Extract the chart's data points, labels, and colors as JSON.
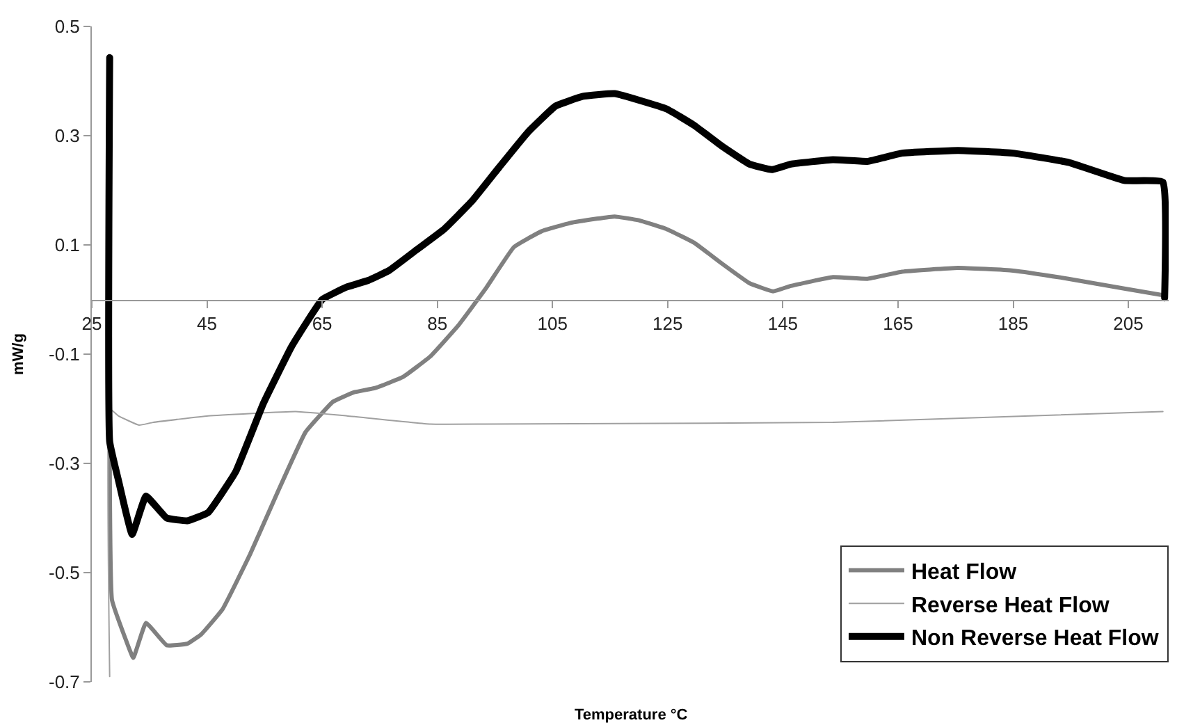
{
  "chart_data": {
    "type": "line",
    "xlabel": "Temperature °C",
    "ylabel": "mW/g",
    "xlim": [
      25,
      212
    ],
    "xticks": [
      25,
      45,
      65,
      85,
      105,
      125,
      145,
      165,
      185,
      205
    ],
    "ylim": [
      -0.7,
      0.5
    ],
    "yticks": [
      -0.7,
      -0.5,
      -0.3,
      -0.1,
      0.1,
      0.3,
      0.5
    ],
    "legend": "bottom right",
    "marker": "none",
    "line_style": "solid",
    "series": [
      {
        "name": "Heat Flow",
        "color": "#808080",
        "x": [
          28.1,
          28.5,
          30.8,
          32.2,
          34.4,
          38,
          41.6,
          44,
          47.7,
          52.5,
          57.3,
          62.1,
          66.9,
          70.5,
          74.2,
          79,
          83.8,
          88.6,
          93.4,
          98.3,
          103.1,
          108,
          112.7,
          115.8,
          120,
          124.8,
          129.6,
          134.4,
          139.2,
          143.3,
          146.4,
          153.7,
          159.7,
          165.7,
          175.4,
          185,
          194.6,
          204.3,
          211
        ],
        "values": [
          -0.26,
          -0.55,
          -0.62,
          -0.656,
          -0.592,
          -0.633,
          -0.63,
          -0.613,
          -0.567,
          -0.466,
          -0.352,
          -0.243,
          -0.187,
          -0.17,
          -0.162,
          -0.142,
          -0.104,
          -0.048,
          0.02,
          0.096,
          0.125,
          0.14,
          0.148,
          0.152,
          0.145,
          0.129,
          0.104,
          0.066,
          0.03,
          0.015,
          0.025,
          0.041,
          0.038,
          0.051,
          0.058,
          0.053,
          0.038,
          0.02,
          0.008
        ]
      },
      {
        "name": "Reverse Heat Flow",
        "color": "#a0a0a0",
        "x": [
          28.1,
          28.1,
          29.6,
          33.2,
          35.6,
          45.2,
          60.4,
          69.3,
          83.8,
          93.4,
          153.7,
          211
        ],
        "values": [
          -0.69,
          -0.2,
          -0.213,
          -0.23,
          -0.225,
          -0.213,
          -0.205,
          -0.213,
          -0.228,
          -0.228,
          -0.225,
          -0.205
        ]
      },
      {
        "name": "Non Reverse Heat Flow",
        "color": "#000000",
        "x": [
          28.1,
          28.1,
          29.6,
          32,
          34.4,
          38,
          41.6,
          45.2,
          50,
          54.8,
          59.7,
          65,
          69.3,
          73,
          76.6,
          81.4,
          86.2,
          91,
          95.8,
          100.7,
          105.5,
          110.3,
          115.8,
          124.8,
          129.6,
          134.4,
          139.2,
          143.1,
          146.4,
          153.7,
          159.7,
          165.7,
          175.4,
          185,
          194.6,
          204.3,
          211,
          211.3
        ],
        "values": [
          0.443,
          -0.26,
          -0.33,
          -0.43,
          -0.36,
          -0.4,
          -0.405,
          -0.39,
          -0.315,
          -0.19,
          -0.086,
          0,
          0.023,
          0.035,
          0.053,
          0.091,
          0.129,
          0.18,
          0.243,
          0.306,
          0.354,
          0.372,
          0.377,
          0.349,
          0.319,
          0.281,
          0.248,
          0.238,
          0.248,
          0.256,
          0.253,
          0.268,
          0.273,
          0.268,
          0.251,
          0.218,
          0.215,
          0.003
        ]
      }
    ]
  }
}
